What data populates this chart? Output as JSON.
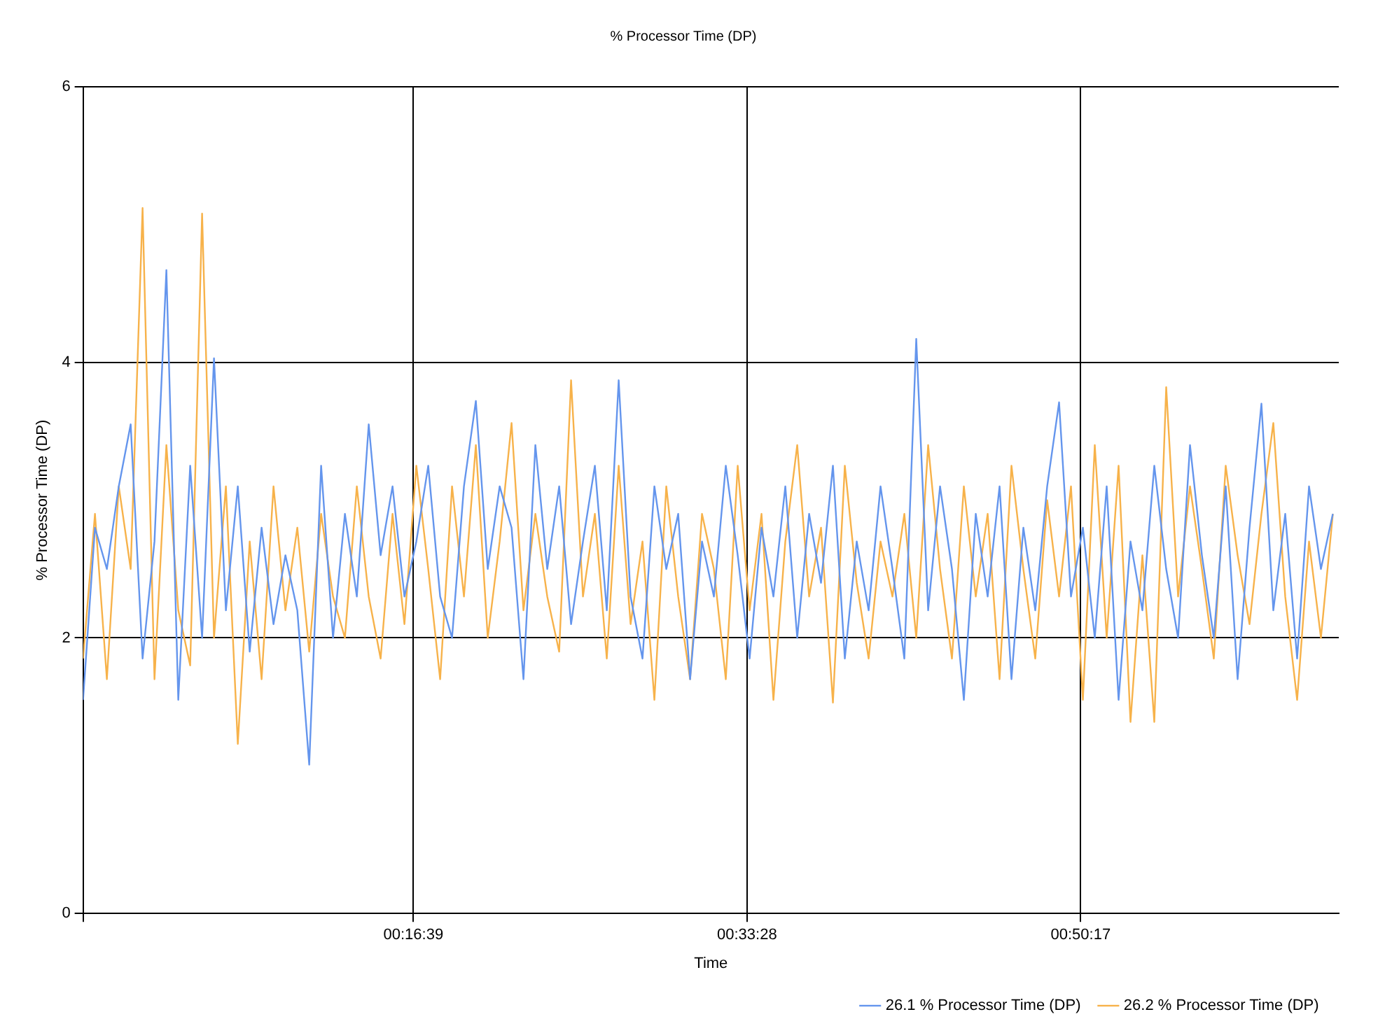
{
  "chart_data": {
    "type": "line",
    "title": "% Processor Time (DP)",
    "xlabel": "Time",
    "ylabel": "% Processor Time (DP)",
    "x": [
      0,
      0.01,
      0.02,
      0.03,
      0.04,
      0.05,
      0.06,
      0.07,
      0.08,
      0.09,
      0.1,
      0.11,
      0.12,
      0.13,
      0.14,
      0.15,
      0.16,
      0.17,
      0.18,
      0.19,
      0.2,
      0.21,
      0.22,
      0.23,
      0.24,
      0.25,
      0.26,
      0.27,
      0.28,
      0.29,
      0.3,
      0.31,
      0.32,
      0.33,
      0.34,
      0.35,
      0.36,
      0.37,
      0.38,
      0.39,
      0.4,
      0.41,
      0.42,
      0.43,
      0.44,
      0.45,
      0.46,
      0.47,
      0.48,
      0.49,
      0.5,
      0.51,
      0.52,
      0.53,
      0.54,
      0.55,
      0.56,
      0.57,
      0.58,
      0.59,
      0.6,
      0.61,
      0.62,
      0.63,
      0.64,
      0.65,
      0.66,
      0.67,
      0.68,
      0.69,
      0.7,
      0.71,
      0.72,
      0.73,
      0.74,
      0.75,
      0.76,
      0.77,
      0.78,
      0.79,
      0.8,
      0.81,
      0.82,
      0.83,
      0.84,
      0.85,
      0.86,
      0.87,
      0.88,
      0.89,
      0.9,
      0.91,
      0.92,
      0.93,
      0.94,
      0.95,
      0.96,
      0.97,
      0.98,
      0.99,
      1.0,
      1.01,
      1.02,
      1.03,
      1.04,
      1.05
    ],
    "series": [
      {
        "name": "26.1 % Processor Time (DP)",
        "color": "#6495ed",
        "values": [
          1.55,
          2.8,
          2.5,
          3.1,
          3.55,
          1.85,
          2.7,
          4.67,
          1.55,
          3.25,
          2.0,
          4.03,
          2.2,
          3.1,
          1.9,
          2.8,
          2.1,
          2.6,
          2.2,
          1.08,
          3.25,
          2.0,
          2.9,
          2.3,
          3.55,
          2.6,
          3.1,
          2.3,
          2.7,
          3.25,
          2.3,
          2.0,
          3.1,
          3.72,
          2.5,
          3.1,
          2.8,
          1.7,
          3.4,
          2.5,
          3.1,
          2.1,
          2.7,
          3.25,
          2.2,
          3.87,
          2.3,
          1.85,
          3.1,
          2.5,
          2.9,
          1.7,
          2.7,
          2.3,
          3.25,
          2.6,
          1.85,
          2.8,
          2.3,
          3.1,
          2.0,
          2.9,
          2.4,
          3.25,
          1.85,
          2.7,
          2.2,
          3.1,
          2.5,
          1.85,
          4.17,
          2.2,
          3.1,
          2.5,
          1.55,
          2.9,
          2.3,
          3.1,
          1.7,
          2.8,
          2.2,
          3.1,
          3.71,
          2.3,
          2.8,
          2.0,
          3.1,
          1.55,
          2.7,
          2.2,
          3.25,
          2.5,
          2.0,
          3.4,
          2.6,
          2.0,
          3.1,
          1.7,
          2.8,
          3.7,
          2.2,
          2.9,
          1.85,
          3.1,
          2.5,
          2.9
        ]
      },
      {
        "name": "26.2 % Processor Time (DP)",
        "color": "#f7b24a",
        "values": [
          1.85,
          2.9,
          1.7,
          3.1,
          2.5,
          5.12,
          1.7,
          3.4,
          2.2,
          1.8,
          5.08,
          2.0,
          3.1,
          1.23,
          2.7,
          1.7,
          3.1,
          2.2,
          2.8,
          1.9,
          2.9,
          2.3,
          2.0,
          3.1,
          2.3,
          1.85,
          2.9,
          2.1,
          3.25,
          2.5,
          1.7,
          3.1,
          2.3,
          3.4,
          2.0,
          2.7,
          3.56,
          2.2,
          2.9,
          2.3,
          1.9,
          3.87,
          2.3,
          2.9,
          1.85,
          3.25,
          2.1,
          2.7,
          1.55,
          3.1,
          2.3,
          1.7,
          2.9,
          2.5,
          1.7,
          3.25,
          2.2,
          2.9,
          1.55,
          2.7,
          3.4,
          2.3,
          2.8,
          1.53,
          3.25,
          2.4,
          1.85,
          2.7,
          2.3,
          2.9,
          2.0,
          3.4,
          2.5,
          1.85,
          3.1,
          2.3,
          2.9,
          1.7,
          3.25,
          2.5,
          1.85,
          3.0,
          2.3,
          3.1,
          1.55,
          3.4,
          2.0,
          3.25,
          1.39,
          2.6,
          1.39,
          3.82,
          2.3,
          3.1,
          2.5,
          1.85,
          3.25,
          2.6,
          2.1,
          2.9,
          3.56,
          2.3,
          1.55,
          2.7,
          2.0,
          2.9
        ]
      }
    ],
    "xlim": [
      0,
      1.055
    ],
    "xticks": [
      {
        "value": 0,
        "label": null
      },
      {
        "value": 0.2775,
        "label": "00:16:39"
      },
      {
        "value": 0.5578,
        "label": "00:33:28"
      },
      {
        "value": 0.8381,
        "label": "00:50:17"
      }
    ],
    "ylim": [
      0,
      6
    ],
    "yticks": [
      0,
      2,
      4,
      6
    ],
    "grid": true,
    "legend": "bottom right",
    "marker": "none",
    "line_style": "solid"
  }
}
